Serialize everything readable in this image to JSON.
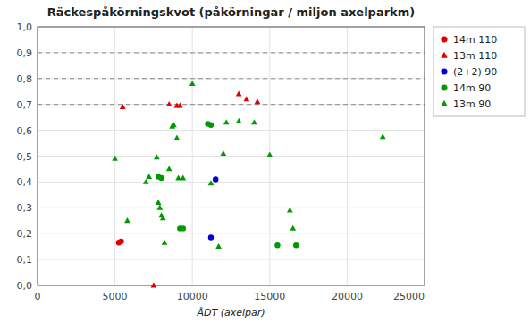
{
  "chart_data": {
    "type": "scatter",
    "title": "Räckespåkörningskvot (påkörningar / miljon axelparkm)",
    "x_label": "ÅDT (axelpar)",
    "xlim": [
      0,
      25000
    ],
    "ylim": [
      0.0,
      1.0
    ],
    "xticks": [
      0,
      5000,
      10000,
      15000,
      20000,
      25000
    ],
    "yticks": [
      {
        "value": 0.0,
        "label": "0,0"
      },
      {
        "value": 0.1,
        "label": "0,1"
      },
      {
        "value": 0.2,
        "label": "0,2"
      },
      {
        "value": 0.3,
        "label": "0,3"
      },
      {
        "value": 0.4,
        "label": "0,4"
      },
      {
        "value": 0.5,
        "label": "0,5"
      },
      {
        "value": 0.6,
        "label": "0,6"
      },
      {
        "value": 0.7,
        "label": "0,7"
      },
      {
        "value": 0.8,
        "label": "0,8"
      },
      {
        "value": 0.9,
        "label": "0,9"
      },
      {
        "value": 1.0,
        "label": "1,0"
      }
    ],
    "hlines": [
      0.7,
      0.8,
      0.9
    ],
    "grid": true,
    "legend": "upper right",
    "series": [
      {
        "name": "14m 110",
        "marker": "circle",
        "color": "#dd0000",
        "x": [
          5250,
          5400
        ],
        "values": [
          0.165,
          0.17
        ]
      },
      {
        "name": "13m 110",
        "marker": "triangle",
        "color": "#dd0000",
        "x": [
          5500,
          7500,
          8500,
          9000,
          9200,
          13000,
          13500,
          14200
        ],
        "values": [
          0.69,
          0.0,
          0.7,
          0.695,
          0.695,
          0.74,
          0.72,
          0.71
        ]
      },
      {
        "name": "(2+2) 90",
        "marker": "circle",
        "color": "#0000cc",
        "x": [
          11200,
          11500
        ],
        "values": [
          0.185,
          0.41
        ]
      },
      {
        "name": "14m 90",
        "marker": "circle",
        "color": "#009900",
        "x": [
          7800,
          8000,
          9200,
          9400,
          11000,
          11200,
          15500,
          16700
        ],
        "values": [
          0.42,
          0.415,
          0.22,
          0.22,
          0.625,
          0.62,
          0.155,
          0.155
        ]
      },
      {
        "name": "13m 90",
        "marker": "triangle",
        "color": "#009900",
        "x": [
          5000,
          5800,
          7000,
          7200,
          7700,
          7800,
          7900,
          8000,
          8100,
          8200,
          8500,
          8700,
          8800,
          9000,
          9100,
          9400,
          10000,
          11200,
          11700,
          12000,
          12200,
          13000,
          14000,
          15000,
          16300,
          16500,
          22300
        ],
        "values": [
          0.49,
          0.25,
          0.4,
          0.42,
          0.495,
          0.32,
          0.3,
          0.27,
          0.26,
          0.165,
          0.45,
          0.615,
          0.62,
          0.57,
          0.415,
          0.415,
          0.78,
          0.395,
          0.15,
          0.51,
          0.63,
          0.635,
          0.63,
          0.505,
          0.29,
          0.22,
          0.575
        ]
      }
    ]
  }
}
